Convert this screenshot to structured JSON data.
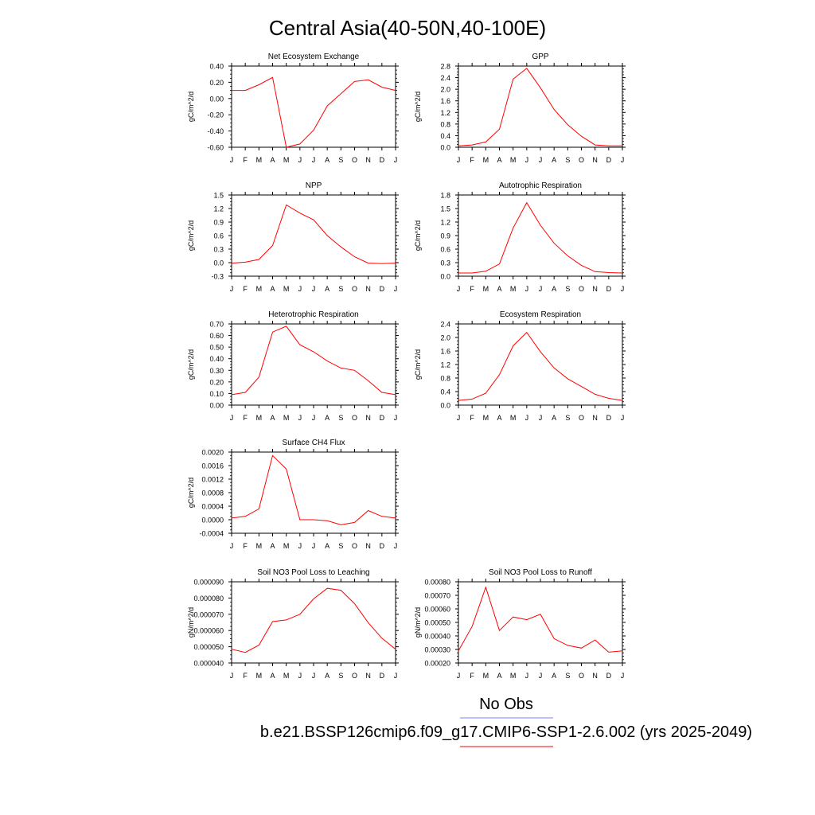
{
  "figure": {
    "title": "Central Asia(40-50N,40-100E)",
    "legend": {
      "obs_label": "No Obs",
      "obs_color": "#8080ff",
      "model_label": "b.e21.BSSP126cmip6.f09_g17.CMIP6-SSP1-2.6.002 (yrs 2025-2049)",
      "model_color": "#ff0000"
    }
  },
  "chart_data": [
    {
      "type": "line",
      "title": "Net Ecosystem Exchange",
      "ylabel": "gC/m^2/d",
      "x": [
        "J",
        "F",
        "M",
        "A",
        "M",
        "J",
        "J",
        "A",
        "S",
        "O",
        "N",
        "D",
        "J"
      ],
      "ylim": [
        -0.6,
        0.4
      ],
      "yticks": [
        "0.40",
        "0.20",
        "0.00",
        "-0.20",
        "-0.40",
        "-0.60"
      ],
      "series": [
        {
          "values": [
            0.1,
            0.1,
            0.17,
            0.26,
            -0.6,
            -0.56,
            -0.39,
            -0.09,
            0.06,
            0.21,
            0.23,
            0.14,
            0.1
          ]
        }
      ]
    },
    {
      "type": "line",
      "title": "GPP",
      "ylabel": "gC/m^2/d",
      "x": [
        "J",
        "F",
        "M",
        "A",
        "M",
        "J",
        "J",
        "A",
        "S",
        "O",
        "N",
        "D",
        "J"
      ],
      "ylim": [
        0,
        2.8
      ],
      "yticks": [
        "2.8",
        "2.4",
        "2.0",
        "1.6",
        "1.2",
        "0.8",
        "0.4",
        "0.0"
      ],
      "series": [
        {
          "values": [
            0.05,
            0.08,
            0.18,
            0.62,
            2.35,
            2.72,
            2.05,
            1.3,
            0.78,
            0.38,
            0.08,
            0.05,
            0.05
          ]
        }
      ]
    },
    {
      "type": "line",
      "title": "NPP",
      "ylabel": "gC/m^2/d",
      "x": [
        "J",
        "F",
        "M",
        "A",
        "M",
        "J",
        "J",
        "A",
        "S",
        "O",
        "N",
        "D",
        "J"
      ],
      "ylim": [
        -0.3,
        1.5
      ],
      "yticks": [
        "1.5",
        "1.2",
        "0.9",
        "0.6",
        "0.3",
        "0.0",
        "-0.3"
      ],
      "series": [
        {
          "values": [
            -0.01,
            0.01,
            0.07,
            0.38,
            1.28,
            1.1,
            0.95,
            0.6,
            0.35,
            0.13,
            -0.01,
            -0.02,
            -0.01
          ]
        }
      ]
    },
    {
      "type": "line",
      "title": "Autotrophic Respiration",
      "ylabel": "gC/m^2/d",
      "x": [
        "J",
        "F",
        "M",
        "A",
        "M",
        "J",
        "J",
        "A",
        "S",
        "O",
        "N",
        "D",
        "J"
      ],
      "ylim": [
        0,
        1.8
      ],
      "yticks": [
        "1.8",
        "1.5",
        "1.2",
        "0.9",
        "0.6",
        "0.3",
        "0.0"
      ],
      "series": [
        {
          "values": [
            0.07,
            0.07,
            0.11,
            0.27,
            1.07,
            1.63,
            1.13,
            0.73,
            0.45,
            0.24,
            0.1,
            0.08,
            0.07
          ]
        }
      ]
    },
    {
      "type": "line",
      "title": "Heterotrophic Respiration",
      "ylabel": "gC/m^2/d",
      "x": [
        "J",
        "F",
        "M",
        "A",
        "M",
        "J",
        "J",
        "A",
        "S",
        "O",
        "N",
        "D",
        "J"
      ],
      "ylim": [
        0,
        0.7
      ],
      "yticks": [
        "0.70",
        "0.60",
        "0.50",
        "0.40",
        "0.30",
        "0.20",
        "0.10",
        "0.00"
      ],
      "series": [
        {
          "values": [
            0.09,
            0.11,
            0.24,
            0.63,
            0.68,
            0.52,
            0.46,
            0.38,
            0.32,
            0.3,
            0.21,
            0.11,
            0.09
          ]
        }
      ]
    },
    {
      "type": "line",
      "title": "Ecosystem Respiration",
      "ylabel": "gC/m^2/d",
      "x": [
        "J",
        "F",
        "M",
        "A",
        "M",
        "J",
        "J",
        "A",
        "S",
        "O",
        "N",
        "D",
        "J"
      ],
      "ylim": [
        0,
        2.4
      ],
      "yticks": [
        "2.4",
        "2.0",
        "1.6",
        "1.2",
        "0.8",
        "0.4",
        "0.0"
      ],
      "series": [
        {
          "values": [
            0.14,
            0.18,
            0.35,
            0.9,
            1.75,
            2.15,
            1.58,
            1.1,
            0.78,
            0.55,
            0.32,
            0.2,
            0.14
          ]
        }
      ]
    },
    {
      "type": "line",
      "title": "Surface CH4 Flux",
      "ylabel": "gC/m^2/d",
      "x": [
        "J",
        "F",
        "M",
        "A",
        "M",
        "J",
        "J",
        "A",
        "S",
        "O",
        "N",
        "D",
        "J"
      ],
      "ylim": [
        -0.0004,
        0.002
      ],
      "yticks": [
        "0.0020",
        "0.0016",
        "0.0012",
        "0.0008",
        "0.0004",
        "0.0000",
        "-0.0004"
      ],
      "series": [
        {
          "values": [
            5e-05,
            0.0001,
            0.00032,
            0.0019,
            0.0015,
            0.0,
            0.0,
            -3e-05,
            -0.00015,
            -8e-05,
            0.00027,
            0.0001,
            5e-05
          ]
        }
      ]
    },
    {
      "type": "line",
      "title": "Soil NO3 Pool Loss to Leaching",
      "ylabel": "gN/m^2/d",
      "x": [
        "J",
        "F",
        "M",
        "A",
        "M",
        "J",
        "J",
        "A",
        "S",
        "O",
        "N",
        "D",
        "J"
      ],
      "ylim": [
        4e-05,
        9e-05
      ],
      "yticks": [
        "0.000090",
        "0.000080",
        "0.000070",
        "0.000060",
        "0.000050",
        "0.000040"
      ],
      "series": [
        {
          "values": [
            4.85e-05,
            4.65e-05,
            5.1e-05,
            6.55e-05,
            6.65e-05,
            7e-05,
            7.95e-05,
            8.6e-05,
            8.48e-05,
            7.65e-05,
            6.48e-05,
            5.53e-05,
            4.85e-05
          ]
        }
      ]
    },
    {
      "type": "line",
      "title": "Soil NO3 Pool Loss to Runoff",
      "ylabel": "gN/m^2/d",
      "x": [
        "J",
        "F",
        "M",
        "A",
        "M",
        "J",
        "J",
        "A",
        "S",
        "O",
        "N",
        "D",
        "J"
      ],
      "ylim": [
        0.0002,
        0.0008
      ],
      "yticks": [
        "0.00080",
        "0.00070",
        "0.00060",
        "0.00050",
        "0.00040",
        "0.00030",
        "0.00020"
      ],
      "series": [
        {
          "values": [
            0.00029,
            0.00047,
            0.00076,
            0.00044,
            0.00054,
            0.00052,
            0.00056,
            0.00038,
            0.00033,
            0.00031,
            0.00037,
            0.00028,
            0.00029
          ]
        }
      ]
    }
  ]
}
